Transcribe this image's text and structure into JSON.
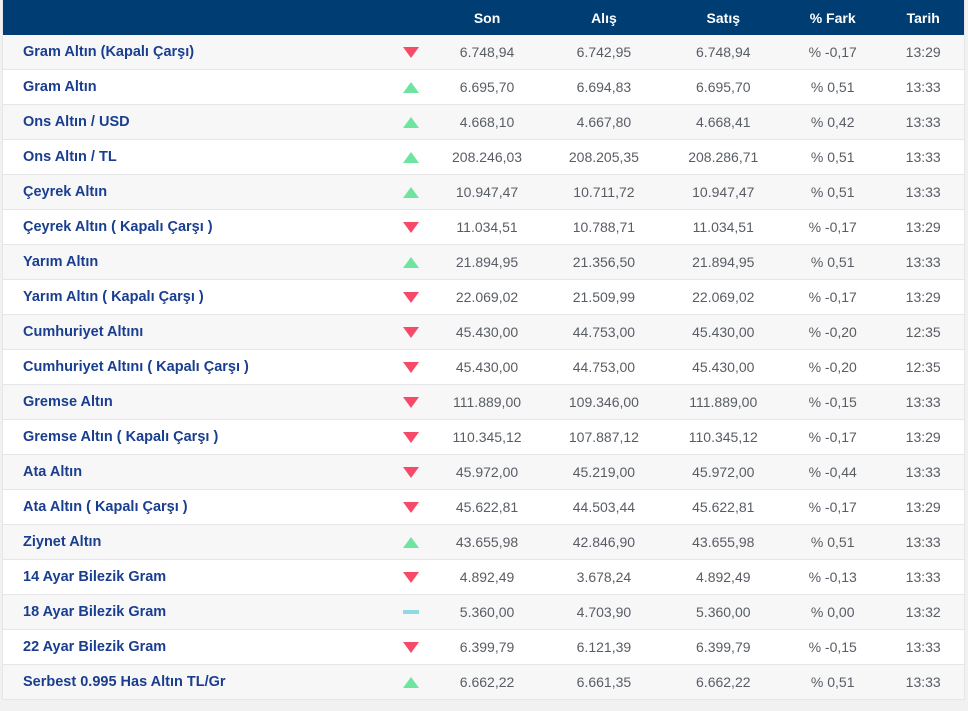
{
  "colors": {
    "header-bg": "#003d73",
    "row-label": "#1a3e8f",
    "value-text": "#585d64",
    "up": "#6fe3a0",
    "down": "#f74a68",
    "flat": "#8fd9e2",
    "row-bg": "#ffffff",
    "row-alt-bg": "#f7f7f8",
    "border": "#e6e6e8",
    "page-bg": "#f1f1f2"
  },
  "table": {
    "columns": [
      "Son",
      "Alış",
      "Satış",
      "% Fark",
      "Tarih"
    ],
    "trend_icons": {
      "up": "up-triangle",
      "down": "down-triangle",
      "flat": "flat-dash"
    },
    "rows": [
      {
        "name": "Gram Altın (Kapalı Çarşı)",
        "direction": "down",
        "son": "6.748,94",
        "alis": "6.742,95",
        "satis": "6.748,94",
        "fark": "% -0,17",
        "tarih": "13:29"
      },
      {
        "name": "Gram Altın",
        "direction": "up",
        "son": "6.695,70",
        "alis": "6.694,83",
        "satis": "6.695,70",
        "fark": "% 0,51",
        "tarih": "13:33"
      },
      {
        "name": "Ons Altın / USD",
        "direction": "up",
        "son": "4.668,10",
        "alis": "4.667,80",
        "satis": "4.668,41",
        "fark": "% 0,42",
        "tarih": "13:33"
      },
      {
        "name": "Ons Altın / TL",
        "direction": "up",
        "son": "208.246,03",
        "alis": "208.205,35",
        "satis": "208.286,71",
        "fark": "% 0,51",
        "tarih": "13:33"
      },
      {
        "name": "Çeyrek Altın",
        "direction": "up",
        "son": "10.947,47",
        "alis": "10.711,72",
        "satis": "10.947,47",
        "fark": "% 0,51",
        "tarih": "13:33"
      },
      {
        "name": "Çeyrek Altın ( Kapalı Çarşı )",
        "direction": "down",
        "son": "11.034,51",
        "alis": "10.788,71",
        "satis": "11.034,51",
        "fark": "% -0,17",
        "tarih": "13:29"
      },
      {
        "name": "Yarım Altın",
        "direction": "up",
        "son": "21.894,95",
        "alis": "21.356,50",
        "satis": "21.894,95",
        "fark": "% 0,51",
        "tarih": "13:33"
      },
      {
        "name": "Yarım Altın ( Kapalı Çarşı )",
        "direction": "down",
        "son": "22.069,02",
        "alis": "21.509,99",
        "satis": "22.069,02",
        "fark": "% -0,17",
        "tarih": "13:29"
      },
      {
        "name": "Cumhuriyet Altını",
        "direction": "down",
        "son": "45.430,00",
        "alis": "44.753,00",
        "satis": "45.430,00",
        "fark": "% -0,20",
        "tarih": "12:35"
      },
      {
        "name": "Cumhuriyet Altını ( Kapalı Çarşı )",
        "direction": "down",
        "son": "45.430,00",
        "alis": "44.753,00",
        "satis": "45.430,00",
        "fark": "% -0,20",
        "tarih": "12:35"
      },
      {
        "name": "Gremse Altın",
        "direction": "down",
        "son": "111.889,00",
        "alis": "109.346,00",
        "satis": "111.889,00",
        "fark": "% -0,15",
        "tarih": "13:33"
      },
      {
        "name": "Gremse Altın ( Kapalı Çarşı )",
        "direction": "down",
        "son": "110.345,12",
        "alis": "107.887,12",
        "satis": "110.345,12",
        "fark": "% -0,17",
        "tarih": "13:29"
      },
      {
        "name": "Ata Altın",
        "direction": "down",
        "son": "45.972,00",
        "alis": "45.219,00",
        "satis": "45.972,00",
        "fark": "% -0,44",
        "tarih": "13:33"
      },
      {
        "name": "Ata Altın ( Kapalı Çarşı )",
        "direction": "down",
        "son": "45.622,81",
        "alis": "44.503,44",
        "satis": "45.622,81",
        "fark": "% -0,17",
        "tarih": "13:29"
      },
      {
        "name": "Ziynet Altın",
        "direction": "up",
        "son": "43.655,98",
        "alis": "42.846,90",
        "satis": "43.655,98",
        "fark": "% 0,51",
        "tarih": "13:33"
      },
      {
        "name": "14 Ayar Bilezik Gram",
        "direction": "down",
        "son": "4.892,49",
        "alis": "3.678,24",
        "satis": "4.892,49",
        "fark": "% -0,13",
        "tarih": "13:33"
      },
      {
        "name": "18 Ayar Bilezik Gram",
        "direction": "flat",
        "son": "5.360,00",
        "alis": "4.703,90",
        "satis": "5.360,00",
        "fark": "% 0,00",
        "tarih": "13:32"
      },
      {
        "name": "22 Ayar Bilezik Gram",
        "direction": "down",
        "son": "6.399,79",
        "alis": "6.121,39",
        "satis": "6.399,79",
        "fark": "% -0,15",
        "tarih": "13:33"
      },
      {
        "name": "Serbest 0.995 Has Altın TL/Gr",
        "direction": "up",
        "son": "6.662,22",
        "alis": "6.661,35",
        "satis": "6.662,22",
        "fark": "% 0,51",
        "tarih": "13:33"
      }
    ]
  }
}
